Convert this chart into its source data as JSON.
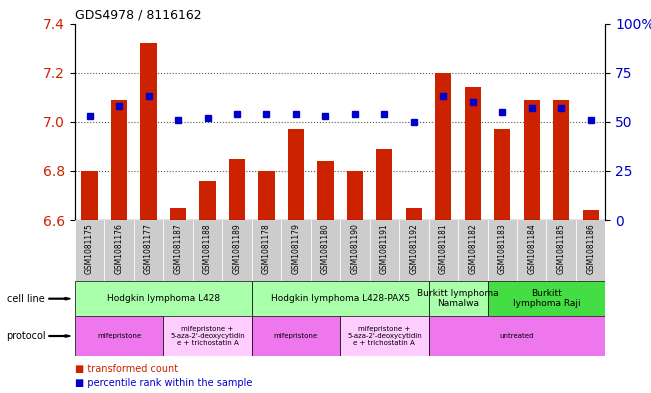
{
  "title": "GDS4978 / 8116162",
  "samples": [
    "GSM1081175",
    "GSM1081176",
    "GSM1081177",
    "GSM1081187",
    "GSM1081188",
    "GSM1081189",
    "GSM1081178",
    "GSM1081179",
    "GSM1081180",
    "GSM1081190",
    "GSM1081191",
    "GSM1081192",
    "GSM1081181",
    "GSM1081182",
    "GSM1081183",
    "GSM1081184",
    "GSM1081185",
    "GSM1081186"
  ],
  "bar_values": [
    6.8,
    7.09,
    7.32,
    6.65,
    6.76,
    6.85,
    6.8,
    6.97,
    6.84,
    6.8,
    6.89,
    6.65,
    7.2,
    7.14,
    6.97,
    7.09,
    7.09,
    6.64
  ],
  "percentile_values": [
    53,
    58,
    63,
    51,
    52,
    54,
    54,
    54,
    53,
    54,
    54,
    50,
    63,
    60,
    55,
    57,
    57,
    51
  ],
  "ylim": [
    6.6,
    7.4
  ],
  "yticks_left": [
    6.6,
    6.8,
    7.0,
    7.2,
    7.4
  ],
  "yticks_right_vals": [
    0,
    25,
    50,
    75,
    100
  ],
  "yticks_right_labels": [
    "0",
    "25",
    "50",
    "75",
    "100%"
  ],
  "bar_color": "#cc2200",
  "dot_color": "#0000cc",
  "grid_color": "#555555",
  "cell_line_groups": [
    {
      "label": "Hodgkin lymphoma L428",
      "start": 0,
      "end": 5,
      "color": "#aaffaa"
    },
    {
      "label": "Hodgkin lymphoma L428-PAX5",
      "start": 6,
      "end": 11,
      "color": "#aaffaa"
    },
    {
      "label": "Burkitt lymphoma\nNamalwa",
      "start": 12,
      "end": 13,
      "color": "#aaffaa"
    },
    {
      "label": "Burkitt\nlymphoma Raji",
      "start": 14,
      "end": 17,
      "color": "#44dd44"
    }
  ],
  "protocol_groups": [
    {
      "label": "mifepristone",
      "start": 0,
      "end": 2,
      "color": "#ee77ee"
    },
    {
      "label": "mifepristone +\n5-aza-2'-deoxycytidin\ne + trichostatin A",
      "start": 3,
      "end": 5,
      "color": "#ffccff"
    },
    {
      "label": "mifepristone",
      "start": 6,
      "end": 8,
      "color": "#ee77ee"
    },
    {
      "label": "mifepristone +\n5-aza-2'-deoxycytidin\ne + trichostatin A",
      "start": 9,
      "end": 11,
      "color": "#ffccff"
    },
    {
      "label": "untreated",
      "start": 12,
      "end": 17,
      "color": "#ee77ee"
    }
  ],
  "xticklabel_bg": "#cccccc",
  "xticklabel_fontsize": 5.5,
  "bar_width": 0.55
}
